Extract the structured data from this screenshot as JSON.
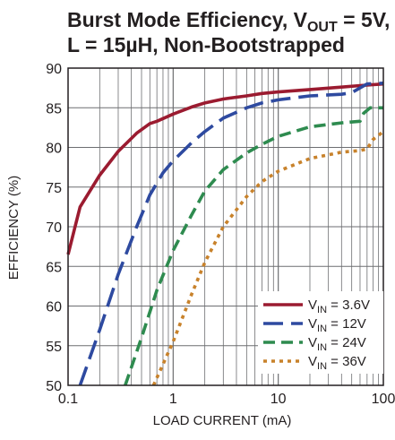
{
  "chart_data": {
    "type": "line",
    "title": {
      "line1_prefix": "Burst Mode Efficiency, V",
      "line1_sub": "OUT",
      "line1_suffix": " = 5V,",
      "line2": "L = 15µH, Non-Bootstrapped"
    },
    "xlabel": "LOAD CURRENT (mA)",
    "ylabel": "EFFICIENCY (%)",
    "x_scale": "log",
    "xlim": [
      0.1,
      100
    ],
    "ylim": [
      50,
      90
    ],
    "x_ticks": [
      {
        "value": 0.1,
        "label": "0.1"
      },
      {
        "value": 1,
        "label": "1"
      },
      {
        "value": 10,
        "label": "10"
      },
      {
        "value": 100,
        "label": "100"
      }
    ],
    "y_ticks": [
      {
        "value": 50,
        "label": "50"
      },
      {
        "value": 55,
        "label": "55"
      },
      {
        "value": 60,
        "label": "60"
      },
      {
        "value": 65,
        "label": "65"
      },
      {
        "value": 70,
        "label": "70"
      },
      {
        "value": 75,
        "label": "75"
      },
      {
        "value": 80,
        "label": "80"
      },
      {
        "value": 85,
        "label": "85"
      },
      {
        "value": 90,
        "label": "90"
      }
    ],
    "grid": true,
    "legend_position": "bottom-right",
    "series": [
      {
        "name_prefix": "V",
        "name_sub": "IN",
        "name_suffix": " = 3.6V",
        "color": "#9b1b30",
        "dash": "solid",
        "points": [
          [
            0.1,
            66.5
          ],
          [
            0.13,
            72.5
          ],
          [
            0.2,
            76.5
          ],
          [
            0.3,
            79.5
          ],
          [
            0.45,
            81.8
          ],
          [
            0.6,
            83
          ],
          [
            0.7,
            83.3
          ],
          [
            1,
            84.2
          ],
          [
            1.5,
            85.1
          ],
          [
            2,
            85.6
          ],
          [
            3,
            86.1
          ],
          [
            5,
            86.5
          ],
          [
            7,
            86.8
          ],
          [
            10,
            87
          ],
          [
            20,
            87.3
          ],
          [
            40,
            87.6
          ],
          [
            60,
            87.8
          ],
          [
            100,
            88
          ]
        ]
      },
      {
        "name_prefix": "V",
        "name_sub": "IN",
        "name_suffix": " = 12V",
        "color": "#2e4aa0",
        "dash": "long",
        "points": [
          [
            0.13,
            50
          ],
          [
            0.2,
            57
          ],
          [
            0.3,
            64
          ],
          [
            0.45,
            70
          ],
          [
            0.6,
            74
          ],
          [
            0.8,
            76.8
          ],
          [
            1,
            78.3
          ],
          [
            1.5,
            80.6
          ],
          [
            2,
            82
          ],
          [
            3,
            83.7
          ],
          [
            5,
            85
          ],
          [
            7,
            85.6
          ],
          [
            10,
            86
          ],
          [
            20,
            86.5
          ],
          [
            40,
            86.7
          ],
          [
            50,
            86.9
          ],
          [
            60,
            87.5
          ],
          [
            70,
            88
          ],
          [
            100,
            88.1
          ]
        ]
      },
      {
        "name_prefix": "V",
        "name_sub": "IN",
        "name_suffix": " = 24V",
        "color": "#2e8b4f",
        "dash": "medium",
        "points": [
          [
            0.35,
            50
          ],
          [
            0.5,
            56
          ],
          [
            0.7,
            62
          ],
          [
            1,
            67
          ],
          [
            1.5,
            71.5
          ],
          [
            2,
            74.5
          ],
          [
            3,
            77.2
          ],
          [
            5,
            79.3
          ],
          [
            7,
            80.4
          ],
          [
            10,
            81.4
          ],
          [
            20,
            82.6
          ],
          [
            40,
            83.1
          ],
          [
            60,
            83.3
          ],
          [
            65,
            84.3
          ],
          [
            75,
            85
          ],
          [
            100,
            85
          ]
        ]
      },
      {
        "name_prefix": "V",
        "name_sub": "IN",
        "name_suffix": " = 36V",
        "color": "#c8822b",
        "dash": "dot",
        "points": [
          [
            0.65,
            50
          ],
          [
            1,
            55.5
          ],
          [
            1.5,
            61.5
          ],
          [
            2,
            65.5
          ],
          [
            3,
            70
          ],
          [
            5,
            73.8
          ],
          [
            7,
            75.7
          ],
          [
            10,
            77
          ],
          [
            20,
            78.6
          ],
          [
            40,
            79.4
          ],
          [
            60,
            79.6
          ],
          [
            70,
            79.8
          ],
          [
            80,
            81
          ],
          [
            100,
            82
          ]
        ]
      }
    ]
  }
}
